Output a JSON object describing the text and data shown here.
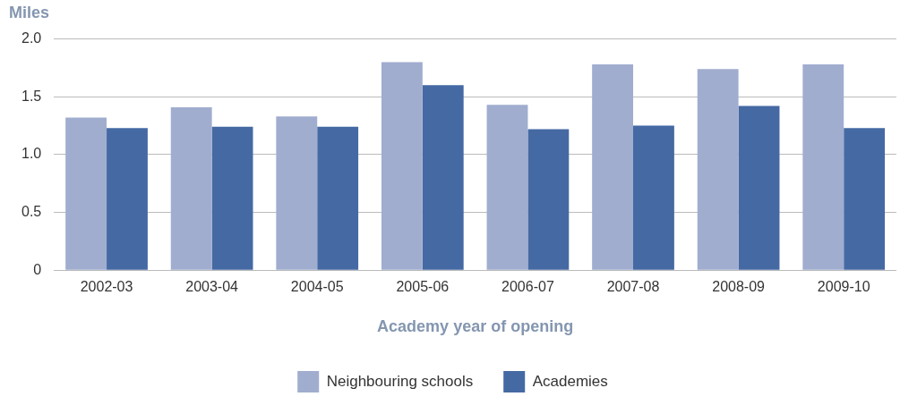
{
  "chart_data": {
    "type": "bar",
    "ylabel": "Miles",
    "xlabel": "Academy year of opening",
    "categories": [
      "2002-03",
      "2003-04",
      "2004-05",
      "2005-06",
      "2006-07",
      "2007-08",
      "2008-09",
      "2009-10"
    ],
    "series": [
      {
        "name": "Neighbouring schools",
        "color": "#a0adcf",
        "values": [
          1.32,
          1.41,
          1.33,
          1.8,
          1.43,
          1.78,
          1.74,
          1.78
        ]
      },
      {
        "name": "Academies",
        "color": "#4569a3",
        "values": [
          1.23,
          1.24,
          1.24,
          1.6,
          1.22,
          1.25,
          1.42,
          1.23
        ]
      }
    ],
    "ylim": [
      0,
      2
    ],
    "yticks": [
      0,
      0.5,
      {
        "value": 1,
        "label": "1.0"
      },
      1.5,
      {
        "value": 2,
        "label": "2.0"
      }
    ],
    "grid": "y",
    "legend": "bottom"
  }
}
